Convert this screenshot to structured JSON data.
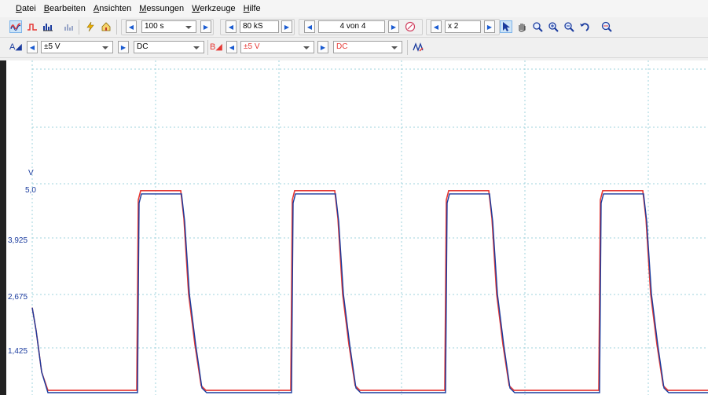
{
  "menu": [
    "Datei",
    "Bearbeiten",
    "Ansichten",
    "Messungen",
    "Werkzeuge",
    "Hilfe"
  ],
  "menu_mnemonics": [
    "D",
    "B",
    "A",
    "M",
    "W",
    "H"
  ],
  "toolbar": {
    "timebase": "100 s",
    "samples": "80 kS",
    "capture": "4 von 4",
    "zoom": "x 2"
  },
  "channels": {
    "a": {
      "label": "A",
      "range": "±5 V",
      "coupling": "DC",
      "color": "#1a3b9e"
    },
    "b": {
      "label": "B",
      "range": "±5 V",
      "coupling": "DC",
      "color": "#e53935"
    }
  },
  "plot": {
    "y_unit": "V",
    "y_ticks": [
      "5,0",
      "3,925",
      "2,675",
      "1,425"
    ]
  },
  "chart_data": {
    "type": "line",
    "ylabel": "V",
    "series": [
      {
        "color": "#e53935",
        "values": [
          2.35,
          0.5,
          0.5,
          0.5,
          0.5,
          4.85,
          4.85,
          4.85,
          0.5,
          0.5,
          0.5,
          0.5,
          4.85,
          4.85,
          4.85,
          0.5,
          0.5,
          0.5,
          0.5,
          4.85,
          4.85,
          4.85,
          0.5,
          0.5,
          0.5,
          0.5,
          4.85,
          4.85,
          4.85,
          0.5,
          0.5
        ]
      },
      {
        "color": "#1a3b9e",
        "values": [
          2.3,
          0.45,
          0.45,
          0.45,
          0.45,
          4.78,
          4.78,
          4.78,
          0.45,
          0.45,
          0.45,
          0.45,
          4.78,
          4.78,
          4.78,
          0.45,
          0.45,
          0.45,
          0.45,
          4.78,
          4.78,
          4.78,
          0.45,
          0.45,
          0.45,
          0.45,
          4.78,
          4.78,
          4.78,
          0.45,
          0.45
        ]
      }
    ]
  }
}
